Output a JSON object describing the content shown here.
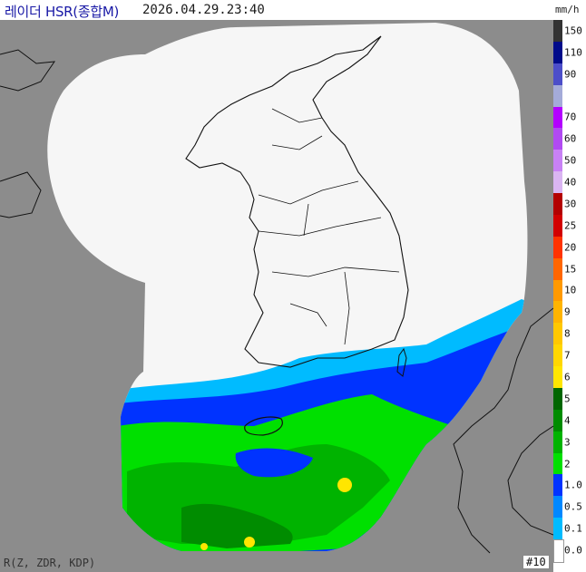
{
  "title": "레이더 HSR(종합M)",
  "timestamp": "2026.04.29.23:40",
  "unit": "mm/h",
  "footer_left": "R(Z, ZDR, KDP)",
  "footer_right": "#10",
  "colors": {
    "outside": "#8c8c8c",
    "coverage": "#f6f6f6",
    "border": "#111111"
  },
  "legend": [
    {
      "label": "150",
      "color": "#333333"
    },
    {
      "label": "110",
      "color": "#000b8a"
    },
    {
      "label": "90",
      "color": "#4c4ec9"
    },
    {
      "label": "",
      "color": "#a4abd9"
    },
    {
      "label": "70",
      "color": "#b300ff"
    },
    {
      "label": "60",
      "color": "#b14af2"
    },
    {
      "label": "50",
      "color": "#c881f5"
    },
    {
      "label": "40",
      "color": "#dab5f2"
    },
    {
      "label": "30",
      "color": "#b30000"
    },
    {
      "label": "25",
      "color": "#d20000"
    },
    {
      "label": "20",
      "color": "#ff3300"
    },
    {
      "label": "15",
      "color": "#ff6600"
    },
    {
      "label": "10",
      "color": "#ff9900"
    },
    {
      "label": "9",
      "color": "#ffb400"
    },
    {
      "label": "8",
      "color": "#ffc800"
    },
    {
      "label": "7",
      "color": "#ffd700"
    },
    {
      "label": "6",
      "color": "#ffe600"
    },
    {
      "label": "5",
      "color": "#006600"
    },
    {
      "label": "4",
      "color": "#008c00"
    },
    {
      "label": "3",
      "color": "#00b300"
    },
    {
      "label": "2",
      "color": "#00e000"
    },
    {
      "label": "1.0",
      "color": "#0033ff"
    },
    {
      "label": "0.5",
      "color": "#0088ff"
    },
    {
      "label": "0.1",
      "color": "#00bbff"
    },
    {
      "label": "0.0",
      "color": "#ffffff"
    }
  ]
}
